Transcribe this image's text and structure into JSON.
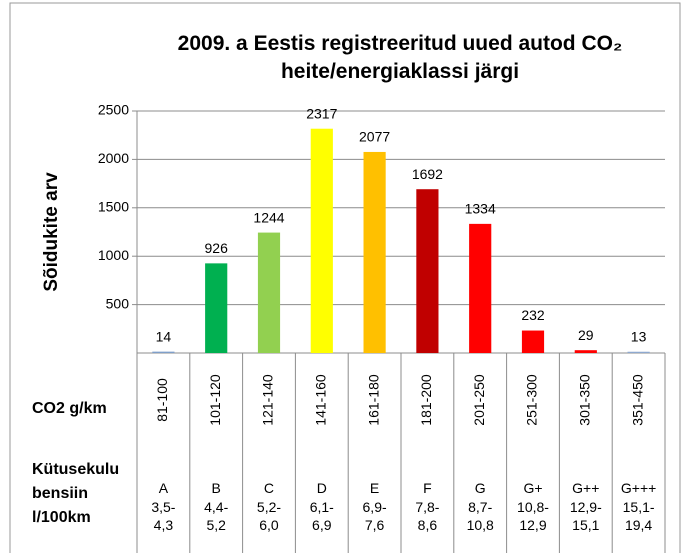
{
  "chart_data": {
    "type": "bar",
    "title": "2009. a Eestis registreeritud uued autod CO₂ heite/energiaklassi järgi",
    "ylabel": "Sõidukite arv",
    "categories": [
      "81-100",
      "101-120",
      "121-140",
      "141-160",
      "161-180",
      "181-200",
      "201-250",
      "251-300",
      "301-350",
      "351-450"
    ],
    "values": [
      14,
      926,
      1244,
      2317,
      2077,
      1692,
      1334,
      232,
      29,
      13
    ],
    "colors": [
      "#7f9fc9",
      "#00b050",
      "#92d050",
      "#ffff00",
      "#ffc000",
      "#c00000",
      "#ff0000",
      "#ff0000",
      "#ff0000",
      "#8ea9cf"
    ],
    "ylim": [
      0,
      2500
    ],
    "yticks": [
      500,
      1000,
      1500,
      2000,
      2500
    ],
    "grid": true,
    "table": {
      "row_labels": [
        "CO2 g/km",
        "Kütusekulu bensiin l/100km"
      ],
      "classes": [
        "A",
        "B",
        "C",
        "D",
        "E",
        "F",
        "G",
        "G+",
        "G++",
        "G+++"
      ],
      "fuel": [
        "3,5-4,3",
        "4,4-5,2",
        "5,2-6,0",
        "6,1-6,9",
        "6,9-7,6",
        "7,8-8,6",
        "8,7-10,8",
        "10,8-12,9",
        "12,9-15,1",
        "15,1-19,4"
      ]
    }
  }
}
